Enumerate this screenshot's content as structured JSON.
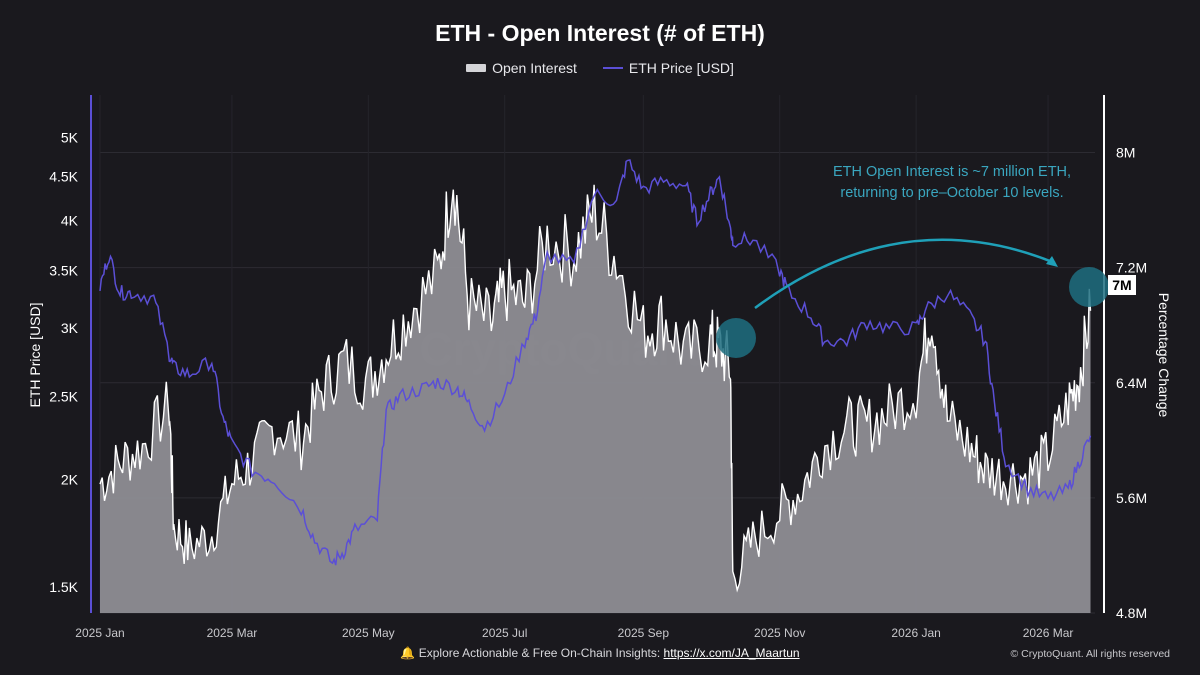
{
  "chart_data": {
    "type": "area+line",
    "title": "ETH - Open Interest (# of ETH)",
    "legend": [
      "Open Interest",
      "ETH Price [USD]"
    ],
    "legend_position": "top-center",
    "x_tick_labels": [
      "2025 Jan",
      "2025 Mar",
      "2025 May",
      "2025 Jul",
      "2025 Sep",
      "2025 Nov",
      "2026 Jan",
      "2026 Mar"
    ],
    "left_axis": {
      "label": "ETH Price [USD]",
      "scale": "log",
      "range": [
        1400,
        5600
      ],
      "ticks": [
        1500,
        2000,
        2500,
        3000,
        3500,
        4000,
        4500,
        5000
      ],
      "tick_labels": [
        "1.5K",
        "2K",
        "2.5K",
        "3K",
        "3.5K",
        "4K",
        "4.5K",
        "5K"
      ]
    },
    "right_axis": {
      "label": "Percentage Change",
      "range": [
        4800000,
        8400000
      ],
      "ticks": [
        4800000,
        5600000,
        6400000,
        7200000,
        8000000
      ],
      "tick_labels": [
        "4.8M",
        "5.6M",
        "6.4M",
        "7.2M",
        "8M"
      ]
    },
    "series": [
      {
        "name": "Open Interest",
        "axis": "right",
        "color": "#ffffff",
        "fill": "#8e8d93",
        "x": [
          "2025-01-01",
          "2025-01-10",
          "2025-01-20",
          "2025-02-01",
          "2025-02-03",
          "2025-02-10",
          "2025-02-20",
          "2025-03-01",
          "2025-03-10",
          "2025-03-20",
          "2025-04-01",
          "2025-04-10",
          "2025-04-20",
          "2025-05-01",
          "2025-05-10",
          "2025-05-20",
          "2025-06-01",
          "2025-06-08",
          "2025-06-15",
          "2025-06-25",
          "2025-07-01",
          "2025-07-10",
          "2025-07-20",
          "2025-08-01",
          "2025-08-10",
          "2025-08-20",
          "2025-09-01",
          "2025-09-10",
          "2025-09-20",
          "2025-10-01",
          "2025-10-05",
          "2025-10-10",
          "2025-10-11",
          "2025-10-20",
          "2025-11-01",
          "2025-11-10",
          "2025-11-20",
          "2025-12-01",
          "2025-12-10",
          "2025-12-20",
          "2026-01-01",
          "2026-01-08",
          "2026-01-15",
          "2026-01-25",
          "2026-02-01",
          "2026-02-10",
          "2026-02-20",
          "2026-03-01",
          "2026-03-10",
          "2026-03-15",
          "2026-03-20"
        ],
        "y": [
          5700000,
          5850000,
          5950000,
          6250000,
          5400000,
          5250000,
          5350000,
          5700000,
          5850000,
          6100000,
          6000000,
          6350000,
          6550000,
          6400000,
          6650000,
          6900000,
          7150000,
          7850000,
          6950000,
          6800000,
          7050000,
          6950000,
          7400000,
          7300000,
          7600000,
          7250000,
          6750000,
          6850000,
          6600000,
          6700000,
          6650000,
          6500000,
          5050000,
          5300000,
          5500000,
          5650000,
          5950000,
          6100000,
          6100000,
          6200000,
          6350000,
          6900000,
          6150000,
          5950000,
          5800000,
          5750000,
          5750000,
          5900000,
          6250000,
          6450000,
          6900000
        ]
      },
      {
        "name": "ETH Price [USD]",
        "axis": "left",
        "color": "#5b4fd6",
        "x": [
          "2025-01-01",
          "2025-01-05",
          "2025-01-10",
          "2025-01-15",
          "2025-01-25",
          "2025-02-01",
          "2025-02-03",
          "2025-02-10",
          "2025-02-20",
          "2025-02-25",
          "2025-03-01",
          "2025-03-10",
          "2025-03-20",
          "2025-04-01",
          "2025-04-07",
          "2025-04-15",
          "2025-04-20",
          "2025-04-25",
          "2025-05-05",
          "2025-05-09",
          "2025-05-15",
          "2025-05-25",
          "2025-06-01",
          "2025-06-10",
          "2025-06-15",
          "2025-06-22",
          "2025-07-01",
          "2025-07-10",
          "2025-07-15",
          "2025-07-20",
          "2025-08-01",
          "2025-08-10",
          "2025-08-20",
          "2025-08-25",
          "2025-09-01",
          "2025-09-10",
          "2025-09-20",
          "2025-09-25",
          "2025-10-01",
          "2025-10-05",
          "2025-10-10",
          "2025-10-11",
          "2025-10-20",
          "2025-11-01",
          "2025-11-05",
          "2025-11-15",
          "2025-11-21",
          "2025-12-01",
          "2025-12-10",
          "2025-12-20",
          "2026-01-01",
          "2026-01-05",
          "2026-01-15",
          "2026-01-25",
          "2026-02-01",
          "2026-02-05",
          "2026-02-10",
          "2026-02-20",
          "2026-03-01",
          "2026-03-10",
          "2026-03-15",
          "2026-03-20"
        ],
        "y": [
          3350,
          3650,
          3300,
          3300,
          3250,
          2800,
          2700,
          2650,
          2750,
          2350,
          2200,
          2050,
          2000,
          1850,
          1700,
          1600,
          1650,
          1750,
          1800,
          2400,
          2500,
          2550,
          2600,
          2550,
          2450,
          2300,
          2500,
          2900,
          3100,
          3650,
          3550,
          4300,
          4200,
          4700,
          4350,
          4450,
          4400,
          4000,
          4300,
          4500,
          3900,
          3800,
          3800,
          3500,
          3300,
          3100,
          2900,
          2900,
          3050,
          3000,
          3000,
          3150,
          3300,
          3100,
          2900,
          2450,
          2100,
          1950,
          1900,
          1950,
          2100,
          2250
        ]
      }
    ],
    "annotation": {
      "text": "ETH Open Interest is ~7 million ETH, returning to pre–October 10 levels.",
      "color": "#3aa6bf"
    },
    "current_value_label": "7M",
    "grid": true,
    "watermark": "CryptoQuant"
  },
  "footer": {
    "prefix": "Explore Actionable & Free On-Chain Insights: ",
    "link": "https://x.com/JA_Maartun",
    "copyright": "© CryptoQuant. All rights reserved"
  },
  "colors": {
    "background": "#1a191e",
    "oi_line": "#ffffff",
    "oi_fill": "#8e8d93",
    "price_line": "#5b4fd6",
    "annotation": "#3aa6bf",
    "left_axis_line": "#5b4fd6"
  }
}
